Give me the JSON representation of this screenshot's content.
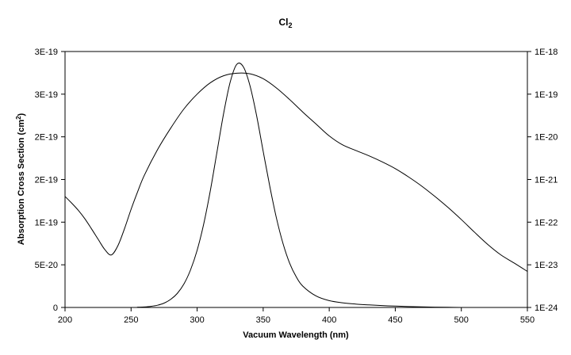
{
  "chart_data": {
    "type": "line",
    "title": "Cl",
    "title_subscript": "2",
    "xlabel": "Vacuum Wavelength (nm)",
    "ylabel_left": "Absorption Cross Section (cm",
    "ylabel_left_superscript": "2",
    "ylabel_left_suffix": ")",
    "xlim": [
      200,
      550
    ],
    "x_ticks": [
      "200",
      "250",
      "300",
      "350",
      "400",
      "450",
      "500",
      "550"
    ],
    "y_left_ticks": [
      "0",
      "5E-20",
      "1E-19",
      "2E-19",
      "2E-19",
      "3E-19",
      "3E-19"
    ],
    "y_left_tick_values": [
      0,
      5e-20,
      1e-19,
      1.5e-19,
      2e-19,
      2.5e-19,
      3e-19
    ],
    "ylim_left": [
      0,
      3e-19
    ],
    "y_right_scale": "log",
    "y_right_ticks": [
      "1E-24",
      "1E-23",
      "1E-22",
      "1E-21",
      "1E-20",
      "1E-19",
      "1E-18"
    ],
    "ylim_right": [
      1e-24,
      1e-18
    ],
    "grid": false,
    "legend": "none",
    "line_color": "#000000",
    "series": [
      {
        "axis": "left",
        "x": [
          200,
          250,
          255,
          260,
          265,
          270,
          275,
          280,
          285,
          290,
          295,
          300,
          305,
          310,
          315,
          320,
          325,
          330,
          335,
          340,
          345,
          350,
          355,
          360,
          365,
          370,
          375,
          380,
          390,
          400,
          410,
          420,
          430,
          440,
          450,
          460,
          470,
          480,
          490,
          500
        ],
        "y": [
          0,
          0,
          3e-22,
          6e-22,
          1.3e-21,
          2.6e-21,
          5.1e-21,
          9.5e-21,
          1.65e-20,
          2.75e-20,
          4.4e-20,
          6.7e-20,
          9.8e-20,
          1.37e-19,
          1.82e-19,
          2.27e-19,
          2.64e-19,
          2.85e-19,
          2.82e-19,
          2.6e-19,
          2.25e-19,
          1.83e-19,
          1.42e-19,
          1.05e-19,
          7.5e-20,
          5.2e-20,
          3.6e-20,
          2.5e-20,
          1.35e-20,
          8e-21,
          5.5e-21,
          4e-21,
          3e-21,
          2.2e-21,
          1.6e-21,
          1.1e-21,
          7e-22,
          4e-22,
          2e-22,
          0
        ]
      },
      {
        "axis": "right",
        "x": [
          200,
          205,
          210,
          215,
          220,
          225,
          230,
          235,
          240,
          245,
          250,
          255,
          260,
          270,
          280,
          290,
          300,
          310,
          320,
          330,
          340,
          350,
          360,
          370,
          380,
          390,
          400,
          410,
          420,
          430,
          440,
          450,
          460,
          470,
          480,
          490,
          500,
          510,
          520,
          530,
          540,
          550
        ],
        "y": [
          4e-22,
          2.8e-22,
          1.9e-22,
          1.2e-22,
          7e-23,
          4e-23,
          2.3e-23,
          1.7e-23,
          2.8e-23,
          7e-23,
          2e-22,
          5.2e-22,
          1.25e-21,
          5e-21,
          1.6e-20,
          4.5e-20,
          1e-19,
          1.85e-19,
          2.7e-19,
          3.1e-19,
          3e-19,
          2.3e-19,
          1.4e-19,
          7.5e-20,
          3.8e-20,
          2e-20,
          1.05e-20,
          6.5e-21,
          4.8e-21,
          3.6e-21,
          2.6e-21,
          1.8e-21,
          1.15e-21,
          7e-22,
          4e-22,
          2.2e-22,
          1.15e-22,
          5.8e-23,
          3e-23,
          1.7e-23,
          1.1e-23,
          7e-24
        ]
      }
    ]
  }
}
